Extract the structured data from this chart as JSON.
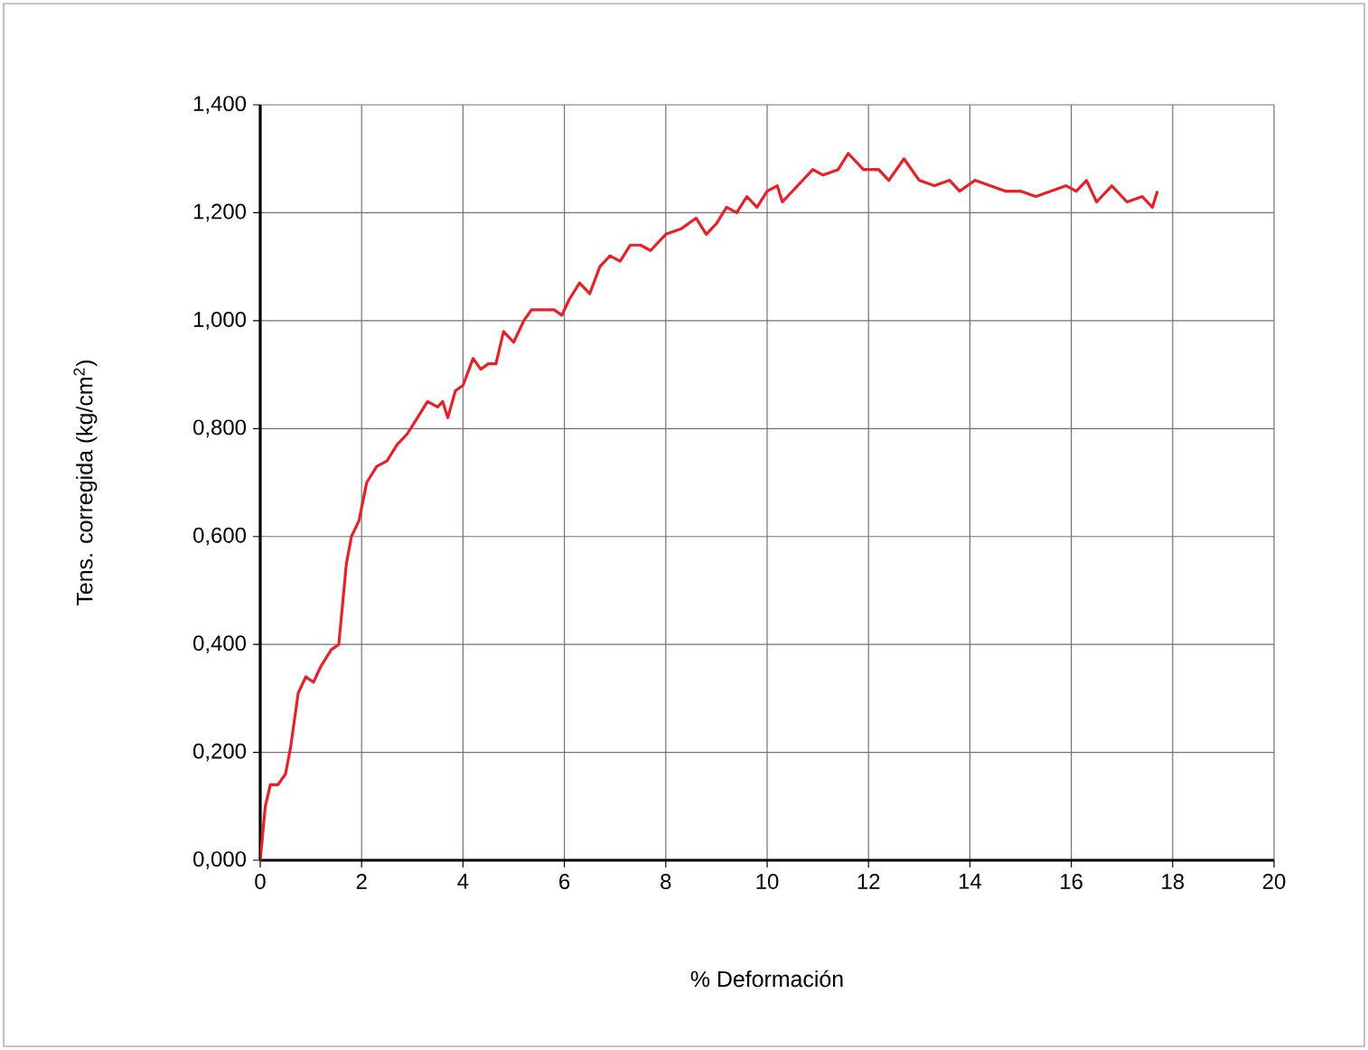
{
  "chart_data": {
    "type": "line",
    "xlabel": "% Deformación",
    "ylabel": "Tens. corregida (kg/cm$^{2}$)",
    "xlim": [
      0,
      20
    ],
    "xticks": [
      0,
      2,
      4,
      6,
      8,
      10,
      12,
      14,
      16,
      18,
      20
    ],
    "ylim": [
      0,
      1.4
    ],
    "yticks": [
      {
        "value": 0,
        "label": "0,000"
      },
      {
        "value": 0.2,
        "label": "0,200"
      },
      {
        "value": 0.4,
        "label": "0,400"
      },
      {
        "value": 0.6,
        "label": "0,600"
      },
      {
        "value": 0.8,
        "label": "0,800"
      },
      {
        "value": 1.0,
        "label": "1,000"
      },
      {
        "value": 1.2,
        "label": "1,200"
      },
      {
        "value": 1.4,
        "label": "1,400"
      }
    ],
    "grid": true,
    "marker": "none",
    "line_style": "solid",
    "series": [
      {
        "color": "#e8202a",
        "x": [
          0,
          0.1,
          0.2,
          0.35,
          0.5,
          0.6,
          0.75,
          0.9,
          1.05,
          1.2,
          1.4,
          1.55,
          1.7,
          1.8,
          1.95,
          2.1,
          2.3,
          2.5,
          2.7,
          2.9,
          3.1,
          3.3,
          3.5,
          3.6,
          3.7,
          3.85,
          4.0,
          4.2,
          4.35,
          4.5,
          4.65,
          4.8,
          5.0,
          5.2,
          5.35,
          5.6,
          5.8,
          5.95,
          6.1,
          6.3,
          6.5,
          6.7,
          6.9,
          7.1,
          7.3,
          7.5,
          7.7,
          8.0,
          8.3,
          8.6,
          8.8,
          9.0,
          9.2,
          9.4,
          9.6,
          9.8,
          10.0,
          10.2,
          10.3,
          10.6,
          10.9,
          11.1,
          11.4,
          11.6,
          11.9,
          12.2,
          12.4,
          12.7,
          13.0,
          13.3,
          13.6,
          13.8,
          14.1,
          14.4,
          14.7,
          15.0,
          15.3,
          15.6,
          15.9,
          16.1,
          16.3,
          16.5,
          16.8,
          17.1,
          17.4,
          17.6,
          17.7
        ],
        "values": [
          0,
          0.1,
          0.14,
          0.14,
          0.16,
          0.21,
          0.31,
          0.34,
          0.33,
          0.36,
          0.39,
          0.4,
          0.55,
          0.6,
          0.63,
          0.7,
          0.73,
          0.74,
          0.77,
          0.79,
          0.82,
          0.85,
          0.84,
          0.85,
          0.82,
          0.87,
          0.88,
          0.93,
          0.91,
          0.92,
          0.92,
          0.98,
          0.96,
          1.0,
          1.02,
          1.02,
          1.02,
          1.01,
          1.04,
          1.07,
          1.05,
          1.1,
          1.12,
          1.11,
          1.14,
          1.14,
          1.13,
          1.16,
          1.17,
          1.19,
          1.16,
          1.18,
          1.21,
          1.2,
          1.23,
          1.21,
          1.24,
          1.25,
          1.22,
          1.25,
          1.28,
          1.27,
          1.28,
          1.31,
          1.28,
          1.28,
          1.26,
          1.3,
          1.26,
          1.25,
          1.26,
          1.24,
          1.26,
          1.25,
          1.24,
          1.24,
          1.23,
          1.24,
          1.25,
          1.24,
          1.26,
          1.22,
          1.25,
          1.22,
          1.23,
          1.21,
          1.24
        ]
      }
    ]
  }
}
